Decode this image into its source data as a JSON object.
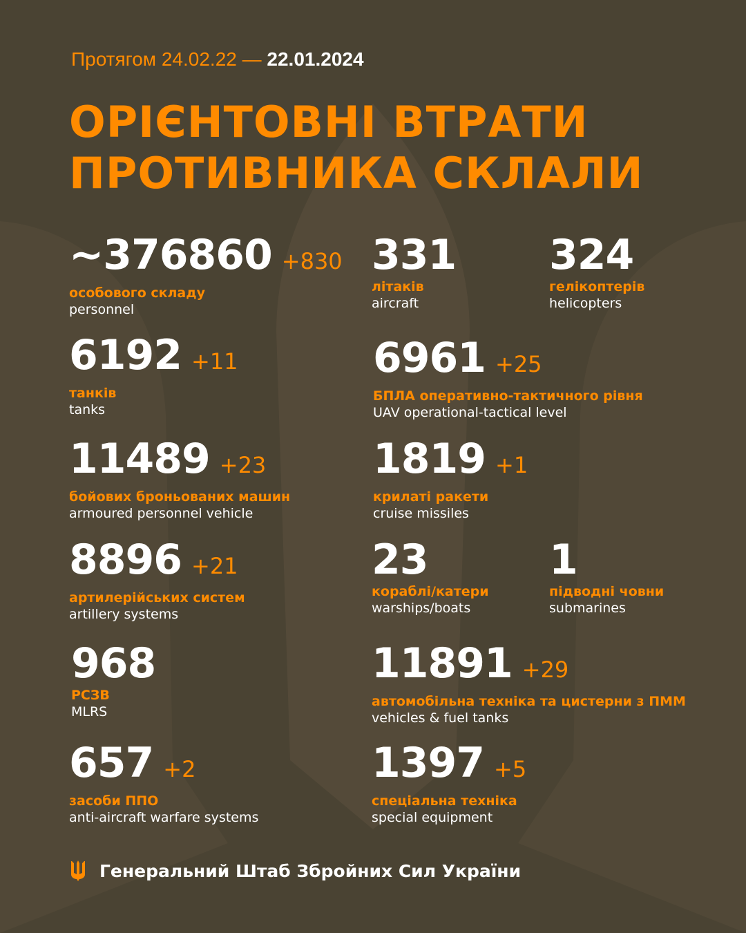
{
  "period": {
    "prefix": "Протягом 24.02.22 —",
    "date": "22.01.2024"
  },
  "title": {
    "line1": "ОРІЄНТОВНІ ВТРАТИ",
    "line2": "ПРОТИВНИКА СКЛАЛИ"
  },
  "stats": [
    {
      "value": "~376860",
      "delta": "+830",
      "ua": "особового складу",
      "en": "personnel"
    },
    {
      "value": "331",
      "delta": "",
      "ua": "літаків",
      "en": "aircraft"
    },
    {
      "value": "324",
      "delta": "",
      "ua": "гелікоптерів",
      "en": "helicopters"
    },
    {
      "value": "6192",
      "delta": "+11",
      "ua": "танків",
      "en": "tanks"
    },
    {
      "value": "6961",
      "delta": "+25",
      "ua": "БПЛА оперативно-тактичного рівня",
      "en": "UAV operational-tactical level"
    },
    {
      "value": "11489",
      "delta": "+23",
      "ua": "бойових броньованих машин",
      "en": "armoured personnel vehicle"
    },
    {
      "value": "1819",
      "delta": "+1",
      "ua": "крилаті ракети",
      "en": "cruise missiles"
    },
    {
      "value": "8896",
      "delta": "+21",
      "ua": "артилерійських систем",
      "en": "artillery systems"
    },
    {
      "value": "23",
      "delta": "",
      "ua": "кораблі/катери",
      "en": "warships/boats"
    },
    {
      "value": "1",
      "delta": "",
      "ua": "підводні човни",
      "en": "submarines"
    },
    {
      "value": "968",
      "delta": "",
      "ua": "РСЗВ",
      "en": "MLRS"
    },
    {
      "value": "11891",
      "delta": "+29",
      "ua": "автомобільна техніка та цистерни з ПММ",
      "en": "vehicles & fuel tanks"
    },
    {
      "value": "657",
      "delta": "+2",
      "ua": "засоби ППО",
      "en": "anti-aircraft warfare systems"
    },
    {
      "value": "1397",
      "delta": "+5",
      "ua": "спеціальна техніка",
      "en": "special equipment"
    }
  ],
  "footer": {
    "org": "Генеральний Штаб Збройних Сил України",
    "icon": "trident-icon"
  },
  "colors": {
    "background": "#4a4333",
    "accent": "#ff8b00",
    "text": "#ffffff"
  }
}
